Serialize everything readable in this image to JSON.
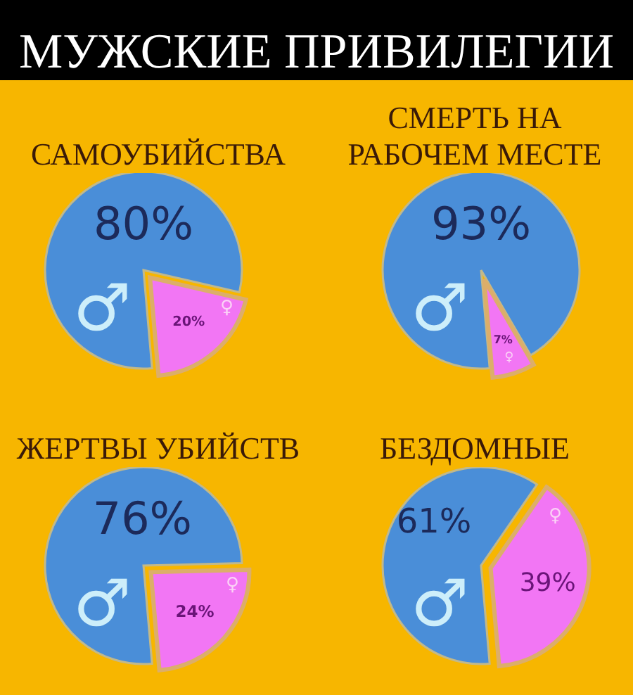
{
  "chart_data": [
    {
      "type": "pie",
      "title": "САМОУБИЙСТВА",
      "annotations": [
        "МУЖСКИЕ ПРИВИЛЕГИИ"
      ],
      "categories": [
        "♂",
        "♀"
      ],
      "values": [
        80,
        20
      ],
      "value_labels": [
        "80%",
        "20%"
      ],
      "colors": [
        "#4a8ed8",
        "#f276f4"
      ]
    },
    {
      "type": "pie",
      "title": "СМЕРТЬ НА РАБОЧЕМ МЕСТЕ",
      "categories": [
        "♂",
        "♀"
      ],
      "values": [
        93,
        7
      ],
      "value_labels": [
        "93%",
        "7%"
      ],
      "colors": [
        "#4a8ed8",
        "#f276f4"
      ]
    },
    {
      "type": "pie",
      "title": "ЖЕРТВЫ УБИЙСТВ",
      "categories": [
        "♂",
        "♀"
      ],
      "values": [
        76,
        24
      ],
      "value_labels": [
        "76%",
        "24%"
      ],
      "colors": [
        "#4a8ed8",
        "#f276f4"
      ]
    },
    {
      "type": "pie",
      "title": "БЕЗДОМНЫЕ",
      "categories": [
        "♂",
        "♀"
      ],
      "values": [
        61,
        39
      ],
      "value_labels": [
        "61%",
        "39%"
      ],
      "colors": [
        "#4a8ed8",
        "#f276f4"
      ]
    }
  ]
}
